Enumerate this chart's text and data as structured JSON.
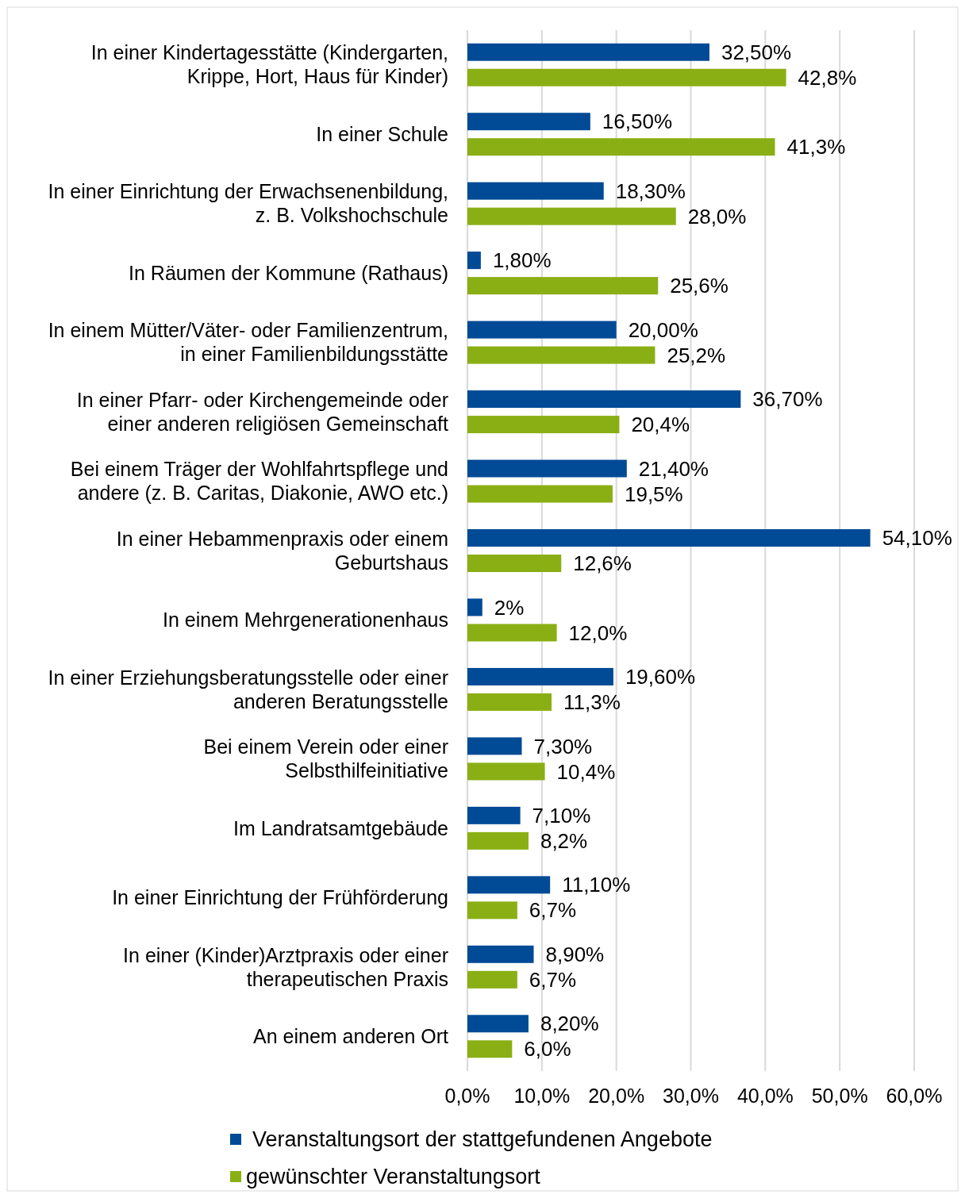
{
  "chart_data": {
    "type": "bar",
    "orientation": "horizontal",
    "categories": [
      "In einer Kindertagesstätte (Kindergarten,\nKrippe, Hort, Haus für Kinder)",
      "In einer Schule",
      "In einer Einrichtung der Erwachsenenbildung,\nz. B. Volkshochschule",
      "In Räumen der Kommune (Rathaus)",
      "In einem Mütter/Väter- oder Familienzentrum,\nin einer Familienbildungsstätte",
      "In einer Pfarr- oder Kirchengemeinde oder\neiner anderen religiösen Gemeinschaft",
      "Bei einem Träger der Wohlfahrtspflege und\nandere (z. B. Caritas, Diakonie, AWO etc.)",
      "In einer Hebammenpraxis oder einem\nGeburtshaus",
      "In einem Mehrgenerationenhaus",
      "In einer Erziehungsberatungsstelle oder einer\nanderen Beratungsstelle",
      "Bei einem Verein oder einer\nSelbsthilfeinitiative",
      "Im Landratsamtgebäude",
      "In einer Einrichtung der Frühförderung",
      "In einer (Kinder)Arztpraxis oder einer\ntherapeutischen Praxis",
      "An einem anderen Ort"
    ],
    "series": [
      {
        "name": "Veranstaltungsort der stattgefundenen Angebote",
        "color": "#004a96",
        "values": [
          32.5,
          16.5,
          18.3,
          1.8,
          20.0,
          36.7,
          21.4,
          54.1,
          2,
          19.6,
          7.3,
          7.1,
          11.1,
          8.9,
          8.2
        ],
        "value_labels": [
          "32,50%",
          "16,50%",
          "18,30%",
          "1,80%",
          "20,00%",
          "36,70%",
          "21,40%",
          "54,10%",
          "2%",
          "19,60%",
          "7,30%",
          "7,10%",
          "11,10%",
          "8,90%",
          "8,20%"
        ]
      },
      {
        "name": "gewünschter Veranstaltungsort",
        "color": "#8aaf14",
        "values": [
          42.8,
          41.3,
          28.0,
          25.6,
          25.2,
          20.4,
          19.5,
          12.6,
          12.0,
          11.3,
          10.4,
          8.2,
          6.7,
          6.7,
          6.0
        ],
        "value_labels": [
          "42,8%",
          "41,3%",
          "28,0%",
          "25,6%",
          "25,2%",
          "20,4%",
          "19,5%",
          "12,6%",
          "12,0%",
          "11,3%",
          "10,4%",
          "8,2%",
          "6,7%",
          "6,7%",
          "6,0%"
        ]
      }
    ],
    "xlim": [
      0,
      60
    ],
    "xticks": [
      {
        "value": 0,
        "label": "0,0%"
      },
      {
        "value": 10,
        "label": "10,0%"
      },
      {
        "value": 20,
        "label": "20,0%"
      },
      {
        "value": 30,
        "label": "30,0%"
      },
      {
        "value": 40,
        "label": "40,0%"
      },
      {
        "value": 50,
        "label": "50,0%"
      },
      {
        "value": 60,
        "label": "60,0%"
      }
    ],
    "grid": "x",
    "legend": "bottom"
  }
}
